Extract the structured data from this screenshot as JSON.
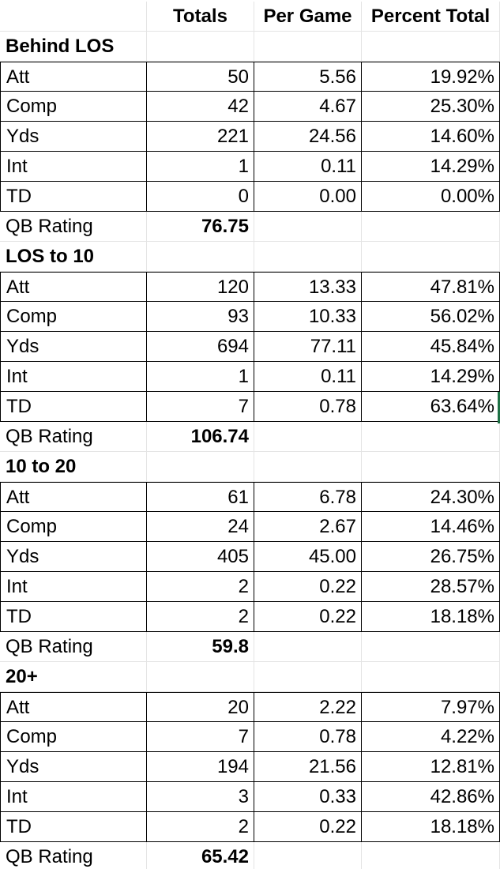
{
  "columns": {
    "label": "",
    "totals": "Totals",
    "per_game": "Per Game",
    "percent_total": "Percent Total"
  },
  "sections": [
    {
      "title": "Behind LOS",
      "rows": [
        {
          "label": "Att",
          "totals": "50",
          "per_game": "5.56",
          "percent": "19.92%"
        },
        {
          "label": "Comp",
          "totals": "42",
          "per_game": "4.67",
          "percent": "25.30%"
        },
        {
          "label": "Yds",
          "totals": "221",
          "per_game": "24.56",
          "percent": "14.60%"
        },
        {
          "label": "Int",
          "totals": "1",
          "per_game": "0.11",
          "percent": "14.29%"
        },
        {
          "label": "TD",
          "totals": "0",
          "per_game": "0.00",
          "percent": "0.00%"
        }
      ],
      "qb_label": "QB Rating",
      "qb_rating": "76.75"
    },
    {
      "title": "LOS to 10",
      "rows": [
        {
          "label": "Att",
          "totals": "120",
          "per_game": "13.33",
          "percent": "47.81%"
        },
        {
          "label": "Comp",
          "totals": "93",
          "per_game": "10.33",
          "percent": "56.02%"
        },
        {
          "label": "Yds",
          "totals": "694",
          "per_game": "77.11",
          "percent": "45.84%"
        },
        {
          "label": "Int",
          "totals": "1",
          "per_game": "0.11",
          "percent": "14.29%"
        },
        {
          "label": "TD",
          "totals": "7",
          "per_game": "0.78",
          "percent": "63.64%"
        }
      ],
      "qb_label": "QB Rating",
      "qb_rating": "106.74"
    },
    {
      "title": "10 to 20",
      "rows": [
        {
          "label": "Att",
          "totals": "61",
          "per_game": "6.78",
          "percent": "24.30%"
        },
        {
          "label": "Comp",
          "totals": "24",
          "per_game": "2.67",
          "percent": "14.46%"
        },
        {
          "label": "Yds",
          "totals": "405",
          "per_game": "45.00",
          "percent": "26.75%"
        },
        {
          "label": "Int",
          "totals": "2",
          "per_game": "0.22",
          "percent": "28.57%"
        },
        {
          "label": "TD",
          "totals": "2",
          "per_game": "0.22",
          "percent": "18.18%"
        }
      ],
      "qb_label": "QB Rating",
      "qb_rating": "59.8"
    },
    {
      "title": "20+",
      "rows": [
        {
          "label": "Att",
          "totals": "20",
          "per_game": "2.22",
          "percent": "7.97%"
        },
        {
          "label": "Comp",
          "totals": "7",
          "per_game": "0.78",
          "percent": "4.22%"
        },
        {
          "label": "Yds",
          "totals": "194",
          "per_game": "21.56",
          "percent": "12.81%"
        },
        {
          "label": "Int",
          "totals": "3",
          "per_game": "0.33",
          "percent": "42.86%"
        },
        {
          "label": "TD",
          "totals": "2",
          "per_game": "0.22",
          "percent": "18.18%"
        }
      ],
      "qb_label": "QB Rating",
      "qb_rating": "65.42"
    }
  ],
  "colors": {
    "gridline": "#e4e4e4",
    "border": "#000000",
    "active_cell": "#1e7145"
  }
}
